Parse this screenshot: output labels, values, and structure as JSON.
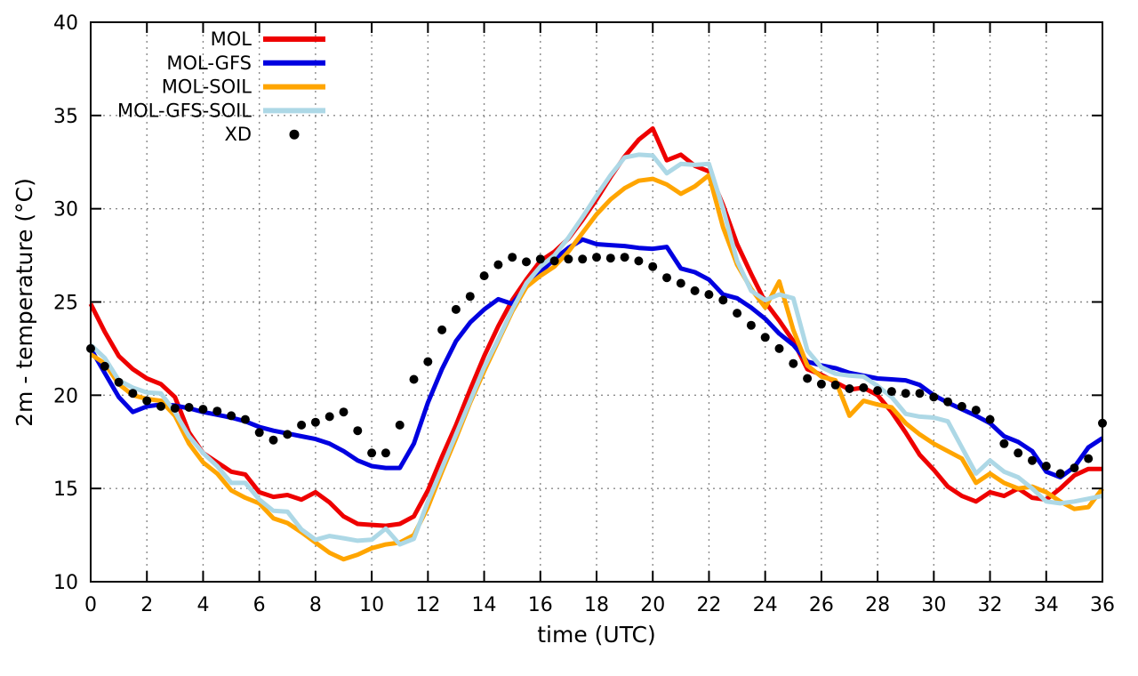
{
  "chart_data": {
    "type": "line",
    "title": "",
    "xlabel": "time (UTC)",
    "ylabel": "2m - temperature (°C)",
    "xlim": [
      0,
      36
    ],
    "ylim": [
      10,
      40
    ],
    "xticks": [
      0,
      2,
      4,
      6,
      8,
      10,
      12,
      14,
      16,
      18,
      20,
      22,
      24,
      26,
      28,
      30,
      32,
      34,
      36
    ],
    "yticks": [
      10,
      15,
      20,
      25,
      30,
      35,
      40
    ],
    "grid": true,
    "legend_position": "top-left-inside",
    "colors": {
      "background": "#ffffff",
      "axis": "#000000",
      "grid": "#8a8a8a"
    },
    "series": [
      {
        "name": "MOL",
        "color": "#ee0000",
        "style": "line",
        "x0": 0,
        "dx": 0.5,
        "values": [
          24.9,
          23.4,
          22.1,
          21.4,
          20.9,
          20.6,
          19.9,
          18.0,
          16.9,
          16.4,
          15.9,
          15.75,
          14.8,
          14.55,
          14.65,
          14.4,
          14.8,
          14.25,
          13.5,
          13.1,
          13.05,
          13.0,
          13.1,
          13.5,
          14.9,
          16.7,
          18.4,
          20.3,
          22.1,
          23.7,
          25.1,
          26.2,
          27.2,
          27.7,
          28.4,
          29.4,
          30.5,
          31.7,
          32.8,
          33.7,
          34.3,
          32.6,
          32.9,
          32.3,
          32.0,
          30.2,
          28.1,
          26.5,
          25.0,
          24.0,
          22.9,
          21.4,
          21.1,
          20.7,
          20.3,
          20.4,
          20.0,
          19.1,
          18.0,
          16.8,
          16.0,
          15.1,
          14.6,
          14.3,
          14.8,
          14.6,
          15.0,
          14.5,
          14.4,
          15.0,
          15.7,
          16.05,
          16.05
        ]
      },
      {
        "name": "MOL-GFS",
        "color": "#0000e0",
        "style": "line",
        "x0": 0,
        "dx": 0.5,
        "values": [
          22.5,
          21.2,
          19.9,
          19.1,
          19.4,
          19.5,
          19.45,
          19.3,
          19.1,
          18.95,
          18.8,
          18.6,
          18.3,
          18.1,
          17.95,
          17.8,
          17.65,
          17.4,
          17.0,
          16.5,
          16.2,
          16.1,
          16.1,
          17.4,
          19.6,
          21.4,
          22.9,
          23.9,
          24.6,
          25.15,
          24.9,
          25.8,
          26.6,
          27.3,
          27.9,
          28.35,
          28.1,
          28.05,
          28.0,
          27.9,
          27.85,
          27.95,
          26.8,
          26.6,
          26.2,
          25.4,
          25.2,
          24.7,
          24.1,
          23.3,
          22.7,
          21.8,
          21.6,
          21.45,
          21.2,
          21.05,
          20.9,
          20.85,
          20.8,
          20.55,
          20.0,
          19.6,
          19.25,
          18.9,
          18.5,
          17.8,
          17.5,
          17.0,
          15.9,
          15.6,
          16.15,
          17.2,
          17.7
        ]
      },
      {
        "name": "MOL-SOIL",
        "color": "#ffa500",
        "style": "line",
        "x0": 0,
        "dx": 0.5,
        "values": [
          22.2,
          21.7,
          20.6,
          20.0,
          19.8,
          19.7,
          18.9,
          17.4,
          16.4,
          15.8,
          14.9,
          14.5,
          14.2,
          13.4,
          13.15,
          12.65,
          12.1,
          11.55,
          11.2,
          11.45,
          11.8,
          12.0,
          12.1,
          12.5,
          14.0,
          15.9,
          17.7,
          19.6,
          21.3,
          22.9,
          24.5,
          25.8,
          26.4,
          26.9,
          27.7,
          28.7,
          29.7,
          30.5,
          31.1,
          31.5,
          31.6,
          31.3,
          30.8,
          31.2,
          31.8,
          29.0,
          27.0,
          25.7,
          24.7,
          26.1,
          23.5,
          21.6,
          21.0,
          20.8,
          18.9,
          19.7,
          19.5,
          19.35,
          18.5,
          17.9,
          17.4,
          17.0,
          16.6,
          15.3,
          15.8,
          15.3,
          15.0,
          15.1,
          14.8,
          14.3,
          13.9,
          14.0,
          15.0
        ]
      },
      {
        "name": "MOL-GFS-SOIL",
        "color": "#add8e6",
        "style": "line",
        "x0": 0,
        "dx": 0.5,
        "values": [
          22.7,
          22.0,
          20.8,
          20.4,
          20.15,
          20.1,
          19.1,
          17.8,
          16.9,
          16.2,
          15.3,
          15.3,
          14.4,
          13.8,
          13.76,
          12.8,
          12.25,
          12.45,
          12.33,
          12.2,
          12.25,
          12.85,
          12.0,
          12.3,
          14.3,
          16.1,
          17.9,
          19.7,
          21.5,
          23.0,
          24.6,
          26.0,
          26.9,
          27.5,
          28.45,
          29.55,
          30.7,
          31.8,
          32.75,
          32.9,
          32.85,
          31.9,
          32.4,
          32.35,
          32.4,
          30.0,
          27.2,
          25.6,
          25.1,
          25.4,
          25.2,
          22.4,
          21.5,
          21.15,
          21.05,
          21.0,
          20.5,
          19.9,
          19.0,
          18.85,
          18.8,
          18.6,
          17.2,
          15.8,
          16.5,
          15.9,
          15.6,
          15.0,
          14.3,
          14.2,
          14.3,
          14.45,
          14.6
        ]
      },
      {
        "name": "XD",
        "color": "#000000",
        "style": "points",
        "x0": 0,
        "dx": 0.5,
        "values": [
          22.5,
          21.55,
          20.7,
          20.1,
          19.7,
          19.4,
          19.3,
          19.35,
          19.25,
          19.15,
          18.9,
          18.7,
          18.0,
          17.6,
          17.9,
          18.4,
          18.55,
          18.85,
          19.1,
          18.1,
          16.9,
          16.9,
          18.4,
          20.85,
          21.8,
          23.5,
          24.6,
          25.3,
          26.4,
          27.0,
          27.4,
          27.15,
          27.3,
          27.2,
          27.3,
          27.3,
          27.4,
          27.35,
          27.4,
          27.2,
          26.9,
          26.3,
          26.0,
          25.6,
          25.4,
          25.1,
          24.4,
          23.75,
          23.1,
          22.5,
          21.7,
          20.9,
          20.6,
          20.55,
          20.35,
          20.4,
          20.25,
          20.2,
          20.1,
          20.1,
          19.9,
          19.65,
          19.4,
          19.2,
          18.7,
          17.4,
          16.9,
          16.5,
          16.2,
          15.8,
          16.1,
          16.6,
          18.5
        ]
      }
    ]
  }
}
